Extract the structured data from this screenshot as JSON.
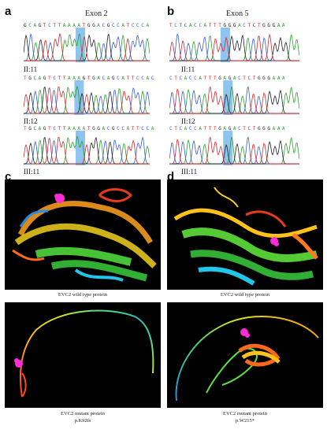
{
  "panels": {
    "a": {
      "letter": "a",
      "title": "Exon 2"
    },
    "b": {
      "letter": "b",
      "title": "Exon 5"
    },
    "c": {
      "letter": "c"
    },
    "d": {
      "letter": "d"
    }
  },
  "sequences": {
    "a1": "GCAGTCTTAAAATGGACGCCATCCCA",
    "a2": "TGCAGTCTTAAAGTGACAGCATTCCAC",
    "a3": "TGCAGTCTTAAAATGGACGCCATTCCA",
    "b1": "TCTCACCATTTGGGACTCTGGGAA",
    "b2": "CTCACCATTTGAGACTCTGGGAAA",
    "b3": "CTCACCATTTGAGACTCTGGGAAA"
  },
  "sample_labels": {
    "a1": "II:11",
    "a2": "II:12",
    "a3": "III:11",
    "b1": "II:11",
    "b2": "II:12",
    "b3": "III:11"
  },
  "captions": {
    "c_top": "EVC2 wild type protein",
    "d_top": "EVC2 wild type protein",
    "c_bottom_line1": "EVC2 mutant protein",
    "c_bottom_line2": "p.K92fs",
    "d_bottom_line1": "EVC2 mutant protein",
    "d_bottom_line2": "p.W215*"
  },
  "colors": {
    "base_A": "#2aa02a",
    "base_C": "#3a5bd9",
    "base_G": "#222222",
    "base_T": "#d62728",
    "highlight": "#6ab0ea",
    "magenta": "#ff2bd6"
  }
}
